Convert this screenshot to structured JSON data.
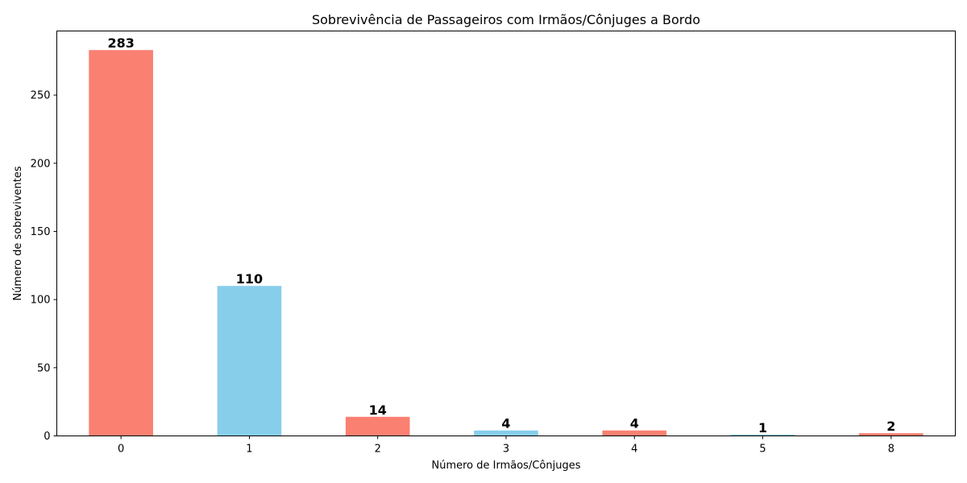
{
  "chart_data": {
    "type": "bar",
    "title": "Sobrevivência de Passageiros com Irmãos/Cônjuges a Bordo",
    "xlabel": "Número de Irmãos/Cônjuges",
    "ylabel": "Número de sobreviventes",
    "categories": [
      "0",
      "1",
      "2",
      "3",
      "4",
      "5",
      "8"
    ],
    "values": [
      283,
      110,
      14,
      4,
      4,
      1,
      2
    ],
    "data_labels": [
      "283",
      "110",
      "14",
      "4",
      "4",
      "1",
      "2"
    ],
    "bar_colors": [
      "#fa8072",
      "#87ceeb",
      "#fa8072",
      "#87ceeb",
      "#fa8072",
      "#87ceeb",
      "#fa8072"
    ],
    "ylim": [
      0,
      297
    ],
    "yticks": [
      0,
      50,
      100,
      150,
      200,
      250
    ],
    "ytick_labels": [
      "0",
      "50",
      "100",
      "150",
      "200",
      "250"
    ],
    "grid": false,
    "legend": "none"
  }
}
